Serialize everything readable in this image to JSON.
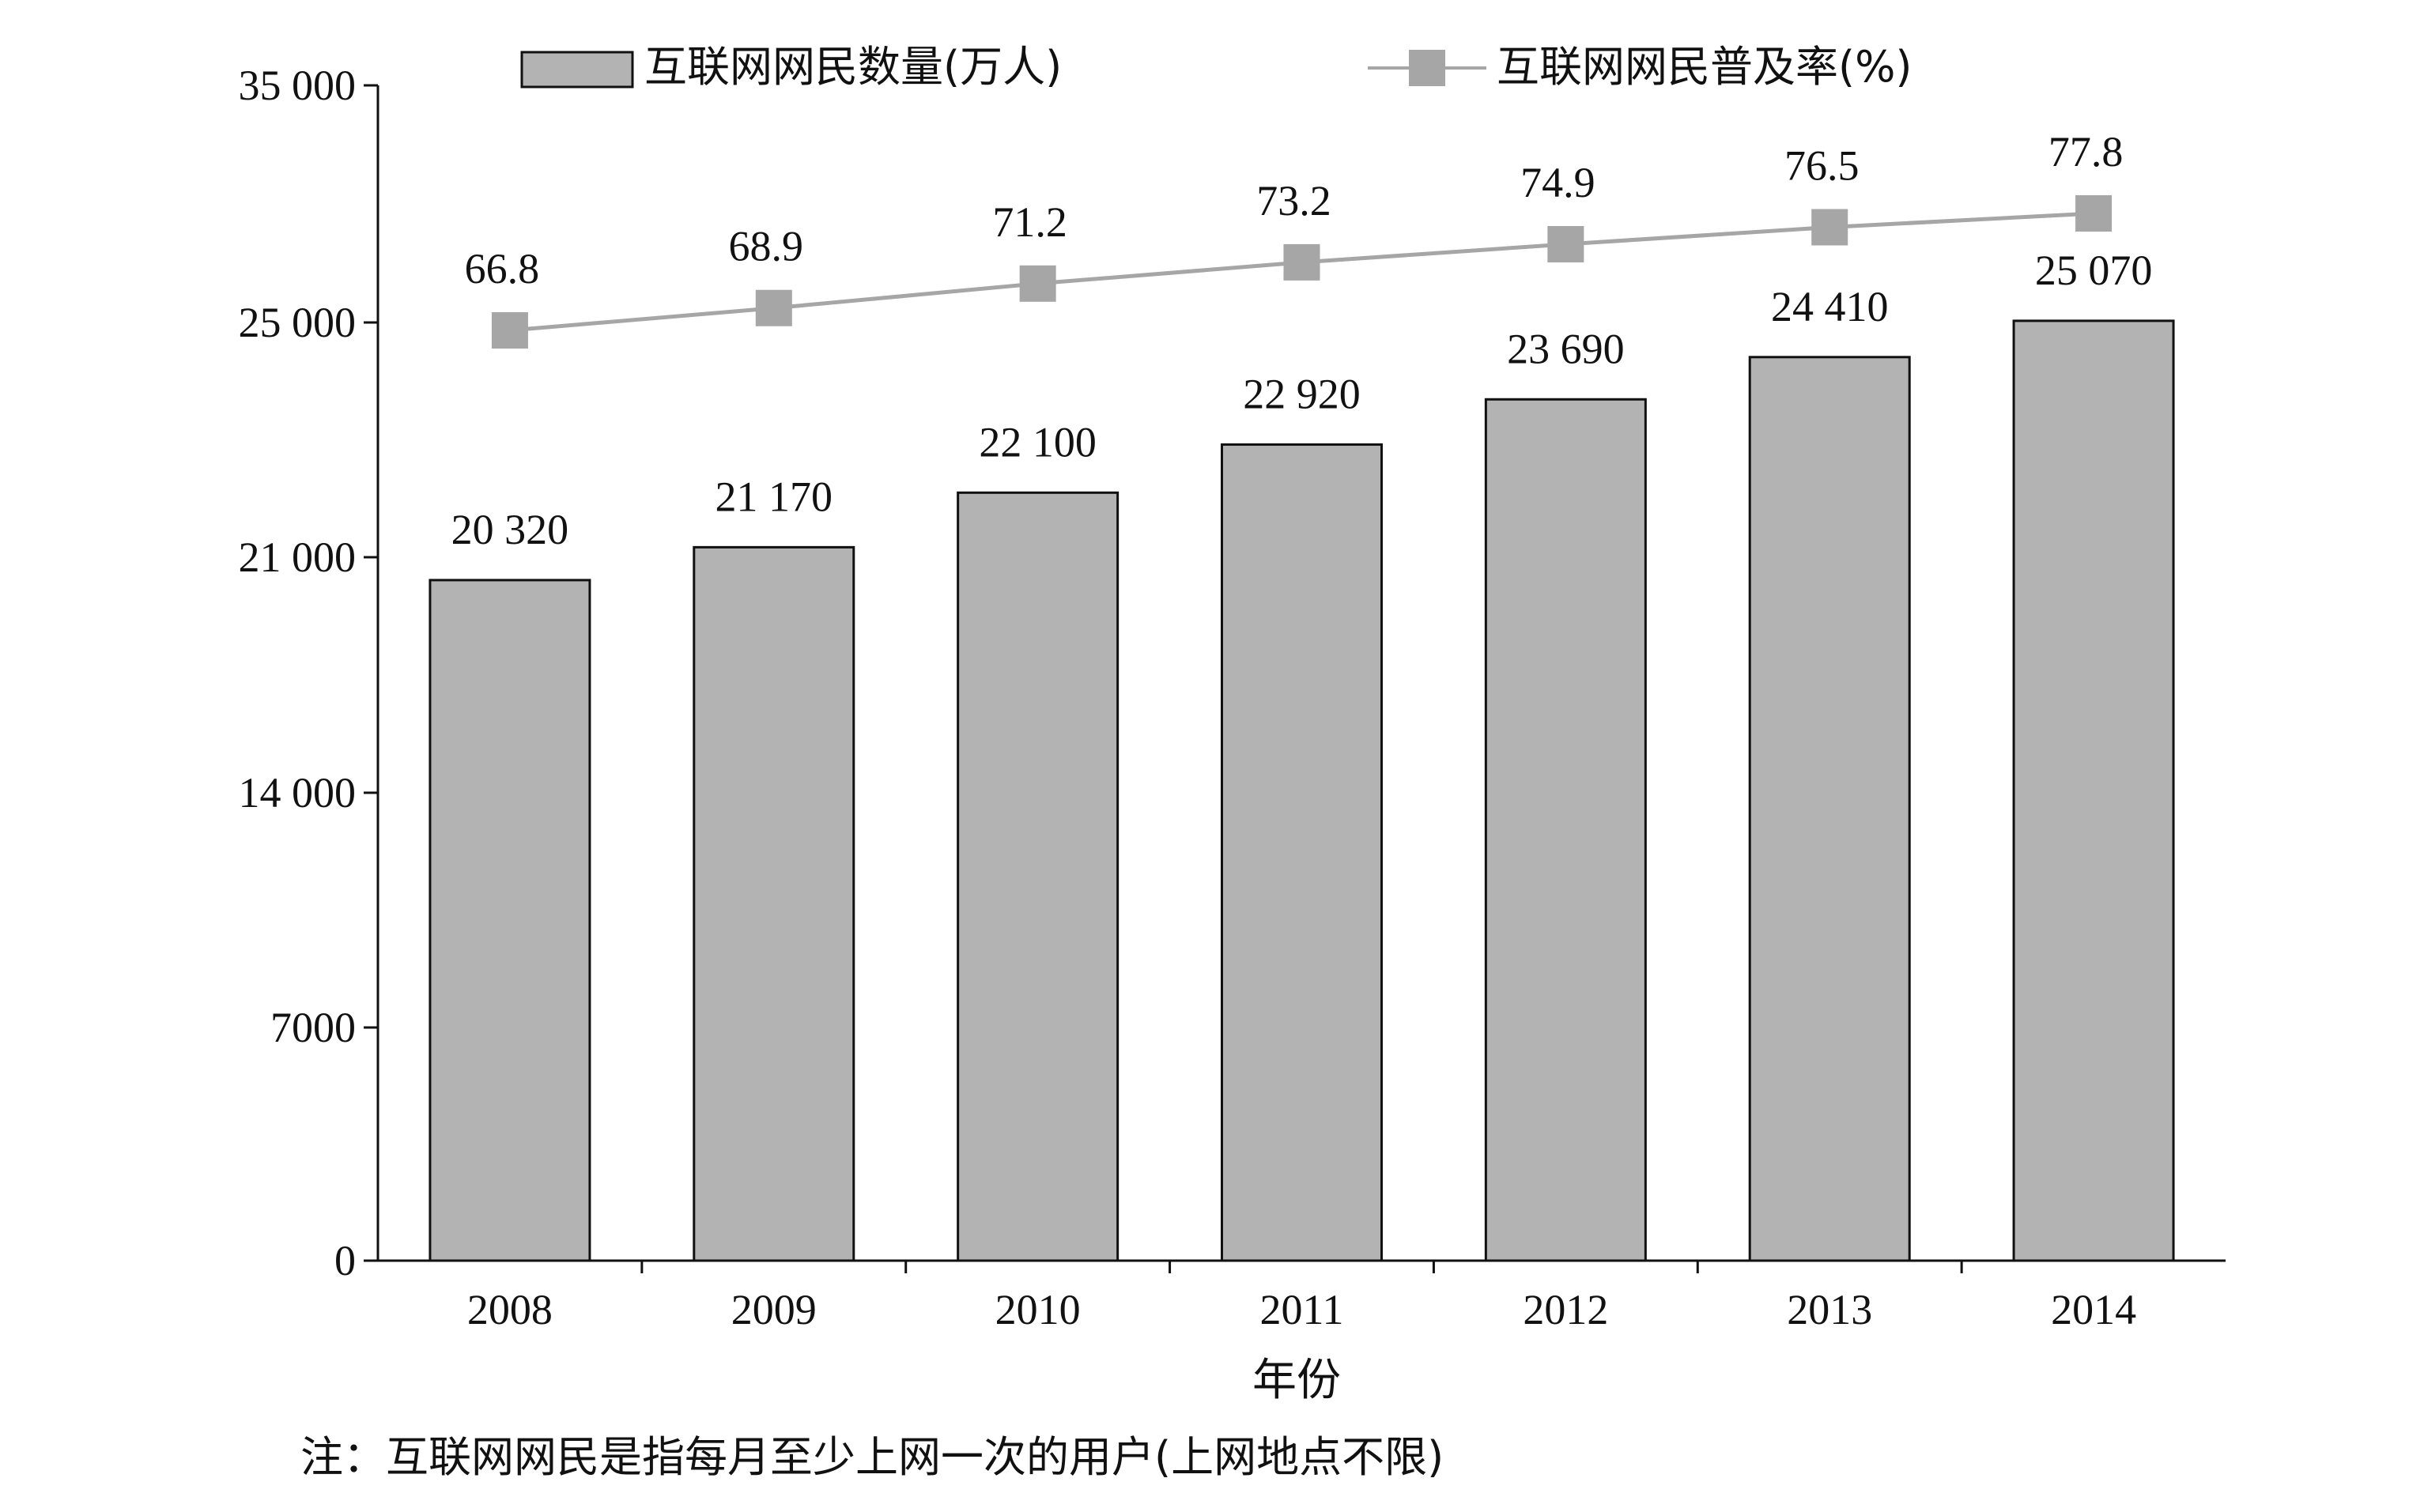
{
  "chart_data": {
    "type": "bar",
    "categories": [
      "2008",
      "2009",
      "2010",
      "2011",
      "2012",
      "2013",
      "2014"
    ],
    "xlabel": "年份",
    "ylabel": "",
    "y_ticks": [
      0,
      7000,
      14000,
      21000,
      25000,
      35000
    ],
    "y_tick_labels": [
      "0",
      "7000",
      "14 000",
      "21 000",
      "25 000",
      "35 000"
    ],
    "ylim": [
      0,
      35000
    ],
    "y_scale": "non-uniform: 7000-step below 21000, then 4000 span to 25000, then 10000 span to 35000",
    "grid": false,
    "legend_position": "top",
    "series": [
      {
        "name": "互联网网民数量(万人)",
        "type": "bar",
        "color": "#b3b3b3",
        "values": [
          20320,
          21170,
          22100,
          22920,
          23690,
          24410,
          25070
        ],
        "labels": [
          "20 320",
          "21 170",
          "22 100",
          "22 920",
          "23 690",
          "24 410",
          "25 070"
        ]
      },
      {
        "name": "互联网网民普及率(%)",
        "type": "line",
        "marker": "square",
        "color": "#a6a6a6",
        "values": [
          66.8,
          68.9,
          71.2,
          73.2,
          74.9,
          76.5,
          77.8
        ],
        "labels": [
          "66.8",
          "68.9",
          "71.2",
          "73.2",
          "74.9",
          "76.5",
          "77.8"
        ]
      }
    ],
    "note": "注：互联网网民是指每月至少上网一次的用户(上网地点不限)"
  }
}
